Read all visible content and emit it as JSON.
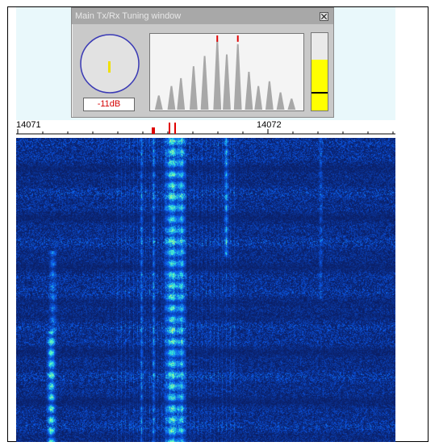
{
  "window": {
    "title": "Main Tx/Rx Tuning window",
    "db_readout": "-11dB",
    "level_meter_fraction": 0.66,
    "level_marker_fraction": 0.22,
    "close_icon": "close-icon"
  },
  "ruler": {
    "labels": [
      "14071",
      "14072"
    ]
  },
  "colors": {
    "waterfall_bg": "#0a2a7a",
    "signal_bright": "#ffff66",
    "signal_mid": "#33cccc",
    "tuning_marker": "#e00000",
    "meter_fill": "#ffff00",
    "scope_circle": "#3a3ab5"
  }
}
